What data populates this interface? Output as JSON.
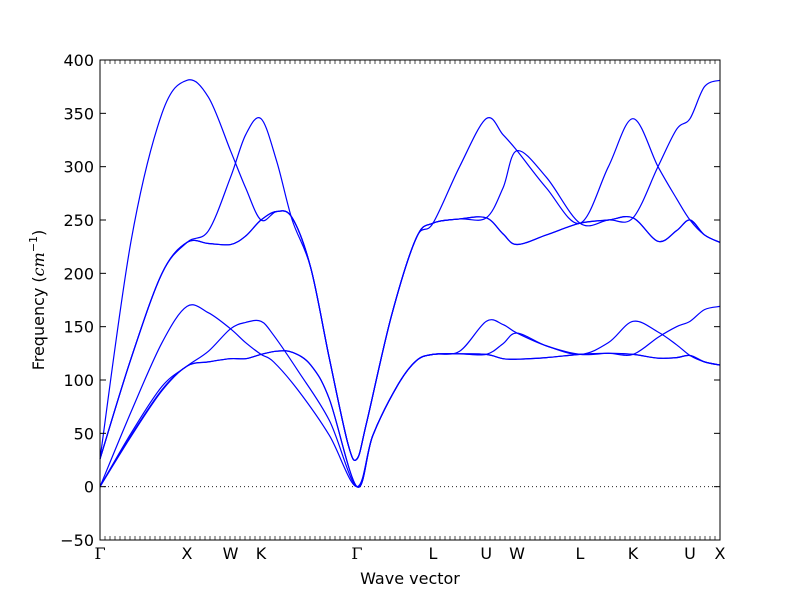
{
  "chart_data": {
    "type": "line",
    "title": "",
    "xlabel": "Wave vector",
    "ylabel": "Frequency",
    "ylabel_unit": "cm",
    "ylabel_unit_exponent": "−1",
    "ylim": [
      -50,
      400
    ],
    "yticks": [
      -50,
      0,
      50,
      100,
      150,
      200,
      250,
      300,
      350,
      400
    ],
    "ytick_labels": [
      "−50",
      "0",
      "50",
      "100",
      "150",
      "200",
      "250",
      "300",
      "350",
      "400"
    ],
    "high_symmetry_points": [
      {
        "label": "Γ",
        "x": 0.0
      },
      {
        "label": "X",
        "x": 0.1403
      },
      {
        "label": "W",
        "x": 0.2105
      },
      {
        "label": "K",
        "x": 0.2597
      },
      {
        "label": "Γ",
        "x": 0.4145
      },
      {
        "label": "L",
        "x": 0.5371
      },
      {
        "label": "U",
        "x": 0.6229
      },
      {
        "label": "W",
        "x": 0.6726
      },
      {
        "label": "L",
        "x": 0.7742
      },
      {
        "label": "K",
        "x": 0.8597
      },
      {
        "label": "U",
        "x": 0.9516
      },
      {
        "label": "X",
        "x": 1.0
      }
    ],
    "xlim": [
      0,
      1
    ],
    "grid": false,
    "zero_line": {
      "y": 0,
      "style": "dotted"
    },
    "line_color": "#0000ff",
    "series": [
      {
        "values": [
          [
            0,
            0
          ],
          [
            0.05,
            48
          ],
          [
            0.1,
            91
          ],
          [
            0.1403,
            113
          ],
          [
            0.175,
            117
          ],
          [
            0.2105,
            120
          ],
          [
            0.235,
            120
          ],
          [
            0.2597,
            124
          ],
          [
            0.285,
            127
          ],
          [
            0.31,
            126
          ],
          [
            0.34,
            114
          ],
          [
            0.37,
            82
          ],
          [
            0.4145,
            0
          ],
          [
            0.44,
            48
          ],
          [
            0.48,
            95
          ],
          [
            0.51,
            118
          ],
          [
            0.5371,
            124
          ],
          [
            0.58,
            124.5
          ],
          [
            0.6229,
            124
          ],
          [
            0.65,
            120
          ],
          [
            0.6726,
            119.5
          ],
          [
            0.72,
            121
          ],
          [
            0.7742,
            124
          ],
          [
            0.82,
            125
          ],
          [
            0.8597,
            124
          ],
          [
            0.9,
            120.5
          ],
          [
            0.93,
            121
          ],
          [
            0.9516,
            123
          ],
          [
            0.975,
            117
          ],
          [
            1.0,
            114
          ]
        ]
      },
      {
        "values": [
          [
            0,
            0
          ],
          [
            0.05,
            47
          ],
          [
            0.1,
            90
          ],
          [
            0.1403,
            113
          ],
          [
            0.175,
            117
          ],
          [
            0.2105,
            120
          ],
          [
            0.235,
            120
          ],
          [
            0.2597,
            124
          ],
          [
            0.285,
            127
          ],
          [
            0.31,
            126
          ],
          [
            0.34,
            114
          ],
          [
            0.37,
            82
          ],
          [
            0.4145,
            0
          ],
          [
            0.44,
            48
          ],
          [
            0.48,
            95
          ],
          [
            0.51,
            118
          ],
          [
            0.5371,
            124
          ],
          [
            0.58,
            127
          ],
          [
            0.6229,
            155
          ],
          [
            0.65,
            152
          ],
          [
            0.6726,
            144
          ],
          [
            0.72,
            132
          ],
          [
            0.7742,
            124
          ],
          [
            0.82,
            135
          ],
          [
            0.8597,
            155
          ],
          [
            0.9,
            145
          ],
          [
            0.93,
            133
          ],
          [
            0.9516,
            123
          ],
          [
            0.975,
            117
          ],
          [
            1.0,
            114
          ]
        ]
      },
      {
        "values": [
          [
            0,
            0
          ],
          [
            0.05,
            70
          ],
          [
            0.1,
            135
          ],
          [
            0.1403,
            169
          ],
          [
            0.175,
            163
          ],
          [
            0.2105,
            148
          ],
          [
            0.235,
            135
          ],
          [
            0.2597,
            124
          ],
          [
            0.28,
            117
          ],
          [
            0.32,
            90
          ],
          [
            0.37,
            48
          ],
          [
            0.4145,
            0
          ],
          [
            0.44,
            48
          ],
          [
            0.48,
            95
          ],
          [
            0.51,
            118
          ],
          [
            0.5371,
            124
          ],
          [
            0.58,
            124.5
          ],
          [
            0.6229,
            124
          ],
          [
            0.65,
            134
          ],
          [
            0.6726,
            144
          ],
          [
            0.72,
            132
          ],
          [
            0.7742,
            124
          ],
          [
            0.82,
            125
          ],
          [
            0.8597,
            124
          ],
          [
            0.9,
            140
          ],
          [
            0.93,
            150
          ],
          [
            0.9516,
            155
          ],
          [
            0.975,
            166
          ],
          [
            1.0,
            169
          ]
        ]
      },
      {
        "values": [
          [
            0,
            0
          ],
          [
            0.05,
            50
          ],
          [
            0.1,
            94
          ],
          [
            0.1403,
            113
          ],
          [
            0.175,
            127
          ],
          [
            0.2105,
            148
          ],
          [
            0.235,
            154
          ],
          [
            0.2597,
            155
          ],
          [
            0.28,
            142
          ],
          [
            0.32,
            108
          ],
          [
            0.37,
            62
          ],
          [
            0.4145,
            0
          ],
          [
            0.44,
            48
          ],
          [
            0.48,
            95
          ],
          [
            0.51,
            118
          ],
          [
            0.5371,
            124
          ],
          [
            0.58,
            124.5
          ],
          [
            0.6229,
            124
          ],
          [
            0.65,
            120
          ],
          [
            0.6726,
            119.5
          ],
          [
            0.72,
            121
          ],
          [
            0.7742,
            124
          ],
          [
            0.82,
            125
          ],
          [
            0.8597,
            124
          ],
          [
            0.9,
            120.5
          ],
          [
            0.93,
            121
          ],
          [
            0.9516,
            123
          ],
          [
            0.975,
            117
          ],
          [
            1.0,
            114
          ]
        ]
      },
      {
        "values": [
          [
            0,
            26
          ],
          [
            0.05,
            120
          ],
          [
            0.1,
            200
          ],
          [
            0.1403,
            229
          ],
          [
            0.175,
            228
          ],
          [
            0.2105,
            227
          ],
          [
            0.235,
            235
          ],
          [
            0.2597,
            250
          ],
          [
            0.285,
            258
          ],
          [
            0.31,
            252
          ],
          [
            0.34,
            205
          ],
          [
            0.37,
            120
          ],
          [
            0.4,
            40
          ],
          [
            0.4145,
            26
          ],
          [
            0.43,
            60
          ],
          [
            0.47,
            160
          ],
          [
            0.51,
            233
          ],
          [
            0.5371,
            247
          ],
          [
            0.58,
            251
          ],
          [
            0.6229,
            252
          ],
          [
            0.65,
            237
          ],
          [
            0.6726,
            227
          ],
          [
            0.72,
            236
          ],
          [
            0.7742,
            247
          ],
          [
            0.82,
            250
          ],
          [
            0.8597,
            252
          ],
          [
            0.9,
            230
          ],
          [
            0.93,
            240
          ],
          [
            0.9516,
            250
          ],
          [
            0.975,
            236
          ],
          [
            1.0,
            229
          ]
        ]
      },
      {
        "values": [
          [
            0,
            26
          ],
          [
            0.05,
            120
          ],
          [
            0.1,
            200
          ],
          [
            0.1403,
            229
          ],
          [
            0.175,
            228
          ],
          [
            0.2105,
            227
          ],
          [
            0.235,
            235
          ],
          [
            0.2597,
            250
          ],
          [
            0.285,
            258
          ],
          [
            0.31,
            252
          ],
          [
            0.34,
            205
          ],
          [
            0.37,
            120
          ],
          [
            0.4,
            40
          ],
          [
            0.4145,
            26
          ],
          [
            0.43,
            60
          ],
          [
            0.47,
            160
          ],
          [
            0.51,
            233
          ],
          [
            0.5371,
            247
          ],
          [
            0.58,
            251
          ],
          [
            0.6229,
            252
          ],
          [
            0.65,
            237
          ],
          [
            0.6726,
            227
          ],
          [
            0.72,
            236
          ],
          [
            0.7742,
            247
          ],
          [
            0.82,
            250
          ],
          [
            0.8597,
            252
          ],
          [
            0.9,
            230
          ],
          [
            0.93,
            240
          ],
          [
            0.9516,
            250
          ],
          [
            0.975,
            236
          ],
          [
            1.0,
            229
          ]
        ]
      },
      {
        "values": [
          [
            0,
            26
          ],
          [
            0.05,
            120
          ],
          [
            0.1,
            200
          ],
          [
            0.1403,
            229
          ],
          [
            0.175,
            240
          ],
          [
            0.2105,
            290
          ],
          [
            0.235,
            330
          ],
          [
            0.2597,
            345
          ],
          [
            0.285,
            305
          ],
          [
            0.31,
            250
          ],
          [
            0.34,
            205
          ],
          [
            0.37,
            120
          ],
          [
            0.4,
            40
          ],
          [
            0.4145,
            26
          ],
          [
            0.43,
            60
          ],
          [
            0.47,
            160
          ],
          [
            0.51,
            233
          ],
          [
            0.5371,
            247
          ],
          [
            0.58,
            300
          ],
          [
            0.6229,
            345
          ],
          [
            0.65,
            330
          ],
          [
            0.6726,
            315
          ],
          [
            0.72,
            280
          ],
          [
            0.7742,
            247
          ],
          [
            0.82,
            300
          ],
          [
            0.8597,
            345
          ],
          [
            0.9,
            300
          ],
          [
            0.93,
            270
          ],
          [
            0.9516,
            250
          ],
          [
            0.975,
            236
          ],
          [
            1.0,
            229
          ]
        ]
      },
      {
        "values": [
          [
            0,
            26
          ],
          [
            0.05,
            230
          ],
          [
            0.1,
            350
          ],
          [
            0.1403,
            381
          ],
          [
            0.175,
            365
          ],
          [
            0.2105,
            315
          ],
          [
            0.235,
            280
          ],
          [
            0.2597,
            250
          ],
          [
            0.285,
            258
          ],
          [
            0.31,
            252
          ],
          [
            0.34,
            205
          ],
          [
            0.37,
            120
          ],
          [
            0.4,
            40
          ],
          [
            0.4145,
            26
          ],
          [
            0.43,
            60
          ],
          [
            0.47,
            160
          ],
          [
            0.51,
            233
          ],
          [
            0.5371,
            247
          ],
          [
            0.58,
            251
          ],
          [
            0.6229,
            252
          ],
          [
            0.65,
            280
          ],
          [
            0.6726,
            315
          ],
          [
            0.72,
            290
          ],
          [
            0.7742,
            247
          ],
          [
            0.82,
            250
          ],
          [
            0.8597,
            252
          ],
          [
            0.9,
            300
          ],
          [
            0.93,
            335
          ],
          [
            0.9516,
            345
          ],
          [
            0.975,
            375
          ],
          [
            1.0,
            381
          ]
        ]
      }
    ]
  }
}
